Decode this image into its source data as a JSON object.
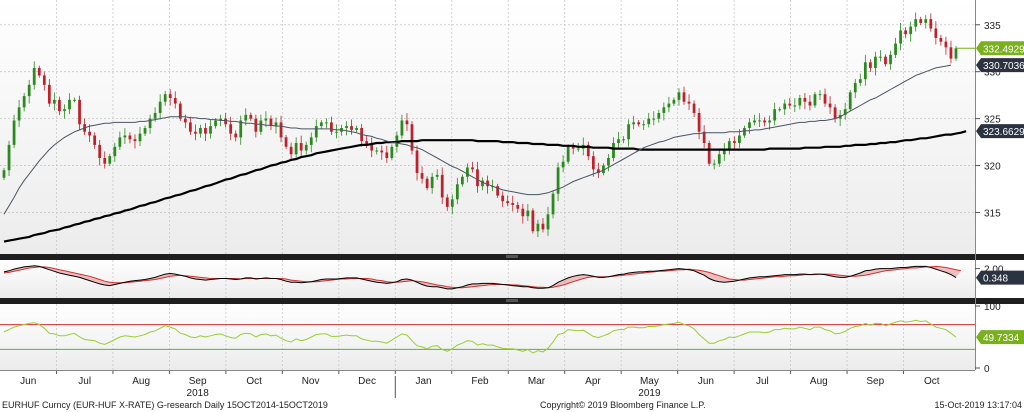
{
  "chart_data": {
    "type": "candlestick",
    "price_panel": {
      "ylim": [
        311,
        337
      ],
      "yticks": [
        "315",
        "320",
        "325",
        "330",
        "335"
      ],
      "last_price": "332.4929",
      "ma_short_last": "330.7036",
      "ma_long_last": "323.6629",
      "colors": {
        "up": "#2a8a1e",
        "down": "#c0202a",
        "ma_short": "#4a5460",
        "ma_long": "#000000",
        "badge_last": "#7ab01e",
        "badge_ma": "#2b3340"
      },
      "close": [
        319.5,
        322.2,
        324.8,
        326.2,
        327.4,
        328.6,
        330.4,
        329.6,
        328.6,
        326.6,
        327.0,
        325.8,
        326.0,
        327.0,
        327.0,
        324.4,
        323.6,
        323.2,
        322.2,
        320.8,
        320.2,
        321.0,
        322.0,
        323.0,
        323.2,
        322.8,
        322.6,
        323.4,
        324.0,
        325.0,
        325.6,
        326.8,
        327.6,
        327.2,
        326.6,
        325.0,
        324.6,
        323.6,
        323.4,
        324.0,
        323.4,
        324.2,
        324.8,
        325.0,
        324.4,
        323.4,
        323.0,
        324.8,
        325.4,
        325.0,
        323.6,
        324.8,
        325.0,
        324.2,
        324.6,
        323.0,
        322.0,
        321.2,
        322.4,
        321.6,
        322.2,
        323.0,
        324.2,
        324.6,
        324.6,
        323.6,
        323.6,
        324.0,
        324.2,
        323.8,
        324.0,
        322.6,
        322.2,
        321.6,
        321.6,
        321.4,
        320.8,
        322.0,
        323.2,
        324.8,
        324.4,
        321.6,
        319.2,
        318.6,
        317.6,
        318.8,
        319.0,
        316.6,
        315.6,
        316.4,
        318.0,
        318.8,
        319.8,
        319.6,
        317.8,
        318.4,
        317.8,
        317.8,
        316.8,
        316.2,
        316.0,
        315.8,
        315.4,
        314.6,
        315.2,
        313.0,
        313.8,
        313.2,
        314.8,
        317.0,
        319.8,
        320.4,
        322.0,
        321.8,
        321.8,
        322.2,
        321.0,
        319.6,
        319.2,
        320.0,
        320.8,
        322.4,
        322.8,
        322.8,
        324.4,
        324.6,
        324.4,
        324.4,
        325.0,
        325.0,
        325.6,
        326.2,
        326.6,
        327.0,
        327.8,
        326.8,
        326.6,
        325.6,
        323.6,
        322.4,
        320.2,
        320.2,
        321.2,
        321.6,
        322.6,
        322.4,
        323.2,
        324.0,
        324.6,
        324.8,
        324.8,
        324.6,
        324.8,
        326.0,
        326.0,
        326.6,
        326.4,
        326.4,
        327.2,
        326.8,
        326.4,
        327.6,
        327.6,
        326.6,
        326.2,
        325.0,
        325.4,
        326.0,
        327.8,
        328.8,
        329.2,
        331.0,
        330.4,
        331.6,
        331.6,
        330.8,
        331.8,
        333.0,
        334.4,
        334.0,
        334.8,
        335.6,
        335.2,
        335.6,
        334.6,
        333.6,
        333.2,
        332.6,
        331.4,
        332.4929
      ],
      "ma_short": [
        314.8,
        315.7,
        316.6,
        317.6,
        318.4,
        319.1,
        319.8,
        320.5,
        321.1,
        321.7,
        322.2,
        322.6,
        323.0,
        323.3,
        323.6,
        323.8,
        324.0,
        324.2,
        324.3,
        324.4,
        324.5,
        324.5,
        324.6,
        324.6,
        324.6,
        324.6,
        324.6,
        324.7,
        324.7,
        324.8,
        324.9,
        325.0,
        325.1,
        325.2,
        325.2,
        325.2,
        325.2,
        325.1,
        325.1,
        325.0,
        325.0,
        324.9,
        324.9,
        324.8,
        324.8,
        324.7,
        324.7,
        324.6,
        324.5,
        324.5,
        324.4,
        324.4,
        324.3,
        324.3,
        324.2,
        324.2,
        324.1,
        324.0,
        324.0,
        323.9,
        323.9,
        323.9,
        323.9,
        323.9,
        323.9,
        323.9,
        323.8,
        323.8,
        323.7,
        323.6,
        323.5,
        323.3,
        323.2,
        323.1,
        322.9,
        322.8,
        322.6,
        322.5,
        322.4,
        322.3,
        322.2,
        322.0,
        321.9,
        321.7,
        321.4,
        321.1,
        320.8,
        320.5,
        320.2,
        319.9,
        319.7,
        319.4,
        319.1,
        318.8,
        318.5,
        318.2,
        318.0,
        317.8,
        317.6,
        317.4,
        317.3,
        317.2,
        317.1,
        317.0,
        316.9,
        316.9,
        316.9,
        317.0,
        317.1,
        317.3,
        317.5,
        317.7,
        318.0,
        318.3,
        318.5,
        318.7,
        318.9,
        319.1,
        319.3,
        319.5,
        319.8,
        320.1,
        320.4,
        320.7,
        321.0,
        321.3,
        321.6,
        321.9,
        322.1,
        322.3,
        322.5,
        322.6,
        322.8,
        323.0,
        323.1,
        323.2,
        323.3,
        323.4,
        323.4,
        323.5,
        323.5,
        323.5,
        323.5,
        323.5,
        323.6,
        323.6,
        323.6,
        323.7,
        323.7,
        323.8,
        323.8,
        323.9,
        324.0,
        324.1,
        324.2,
        324.3,
        324.4,
        324.5,
        324.6,
        324.6,
        324.7,
        324.7,
        324.8,
        324.8,
        324.9,
        325.0,
        325.2,
        325.5,
        325.8,
        326.1,
        326.4,
        326.7,
        327.0,
        327.2,
        327.5,
        327.8,
        328.1,
        328.4,
        328.7,
        329.0,
        329.3,
        329.6,
        329.8,
        330.0,
        330.2,
        330.4,
        330.5,
        330.6,
        330.7036
      ],
      "ma_long": [
        311.9,
        312.0,
        312.1,
        312.2,
        312.3,
        312.4,
        312.6,
        312.7,
        312.8,
        313.0,
        313.1,
        313.2,
        313.4,
        313.5,
        313.7,
        313.8,
        314.0,
        314.1,
        314.3,
        314.4,
        314.6,
        314.7,
        314.9,
        315.0,
        315.2,
        315.3,
        315.5,
        315.7,
        315.8,
        316.0,
        316.1,
        316.3,
        316.5,
        316.6,
        316.8,
        316.9,
        317.1,
        317.3,
        317.4,
        317.6,
        317.8,
        317.9,
        318.1,
        318.3,
        318.5,
        318.6,
        318.8,
        319.0,
        319.1,
        319.3,
        319.5,
        319.6,
        319.8,
        320.0,
        320.1,
        320.3,
        320.4,
        320.6,
        320.7,
        320.9,
        321.0,
        321.1,
        321.3,
        321.4,
        321.5,
        321.6,
        321.7,
        321.8,
        321.9,
        322.0,
        322.1,
        322.2,
        322.2,
        322.3,
        322.4,
        322.4,
        322.5,
        322.5,
        322.5,
        322.6,
        322.6,
        322.6,
        322.6,
        322.7,
        322.7,
        322.7,
        322.7,
        322.7,
        322.7,
        322.7,
        322.7,
        322.7,
        322.7,
        322.7,
        322.6,
        322.6,
        322.6,
        322.6,
        322.6,
        322.5,
        322.5,
        322.5,
        322.4,
        322.4,
        322.4,
        322.3,
        322.3,
        322.3,
        322.2,
        322.2,
        322.2,
        322.1,
        322.1,
        322.1,
        322.0,
        322.0,
        322.0,
        321.9,
        321.9,
        321.9,
        321.9,
        321.8,
        321.8,
        321.8,
        321.8,
        321.8,
        321.7,
        321.7,
        321.7,
        321.7,
        321.7,
        321.7,
        321.7,
        321.7,
        321.7,
        321.7,
        321.7,
        321.7,
        321.7,
        321.7,
        321.7,
        321.7,
        321.7,
        321.7,
        321.7,
        321.7,
        321.7,
        321.7,
        321.7,
        321.7,
        321.7,
        321.7,
        321.8,
        321.8,
        321.8,
        321.8,
        321.8,
        321.8,
        321.8,
        321.9,
        321.9,
        321.9,
        321.9,
        322.0,
        322.0,
        322.0,
        322.0,
        322.1,
        322.1,
        322.2,
        322.2,
        322.2,
        322.3,
        322.3,
        322.4,
        322.4,
        322.5,
        322.5,
        322.6,
        322.7,
        322.7,
        322.8,
        322.9,
        322.9,
        323.0,
        323.1,
        323.2,
        323.3,
        323.3,
        323.4,
        323.5,
        323.6629
      ]
    },
    "macd_panel": {
      "yticks": [
        "2.00"
      ],
      "last_value": "0.348",
      "colors": {
        "macd": "#000000",
        "signal": "#d03030",
        "fill": "#e89090",
        "badge": "#2b3340"
      },
      "macd": [
        1.4,
        1.6,
        1.9,
        2.1,
        2.3,
        2.4,
        2.5,
        2.4,
        2.1,
        1.8,
        1.5,
        1.2,
        1.0,
        0.8,
        0.6,
        0.4,
        0.1,
        -0.2,
        -0.5,
        -0.8,
        -1.0,
        -1.1,
        -0.9,
        -0.7,
        -0.5,
        -0.3,
        -0.2,
        -0.1,
        0.0,
        0.2,
        0.4,
        0.7,
        1.0,
        1.1,
        1.0,
        0.8,
        0.6,
        0.3,
        0.1,
        0.0,
        -0.1,
        0.0,
        0.1,
        0.2,
        0.2,
        0.1,
        0.0,
        0.1,
        0.3,
        0.3,
        0.1,
        0.2,
        0.3,
        0.2,
        0.2,
        0.0,
        -0.3,
        -0.5,
        -0.5,
        -0.6,
        -0.5,
        -0.4,
        -0.2,
        0.0,
        0.1,
        0.1,
        0.1,
        0.2,
        0.3,
        0.3,
        0.3,
        0.1,
        -0.1,
        -0.3,
        -0.5,
        -0.6,
        -0.7,
        -0.6,
        -0.4,
        0.0,
        0.1,
        -0.1,
        -0.5,
        -0.9,
        -1.2,
        -1.3,
        -1.3,
        -1.5,
        -1.7,
        -1.7,
        -1.5,
        -1.3,
        -1.0,
        -0.8,
        -0.8,
        -0.7,
        -0.7,
        -0.7,
        -0.8,
        -0.9,
        -1.0,
        -1.1,
        -1.2,
        -1.3,
        -1.3,
        -1.5,
        -1.6,
        -1.6,
        -1.5,
        -1.1,
        -0.5,
        -0.1,
        0.3,
        0.6,
        0.8,
        0.9,
        0.8,
        0.6,
        0.4,
        0.4,
        0.5,
        0.7,
        0.9,
        1.0,
        1.2,
        1.3,
        1.4,
        1.4,
        1.5,
        1.5,
        1.6,
        1.7,
        1.8,
        1.9,
        2.0,
        1.9,
        1.8,
        1.6,
        1.2,
        0.8,
        0.2,
        -0.2,
        -0.4,
        -0.5,
        -0.4,
        -0.3,
        -0.1,
        0.1,
        0.3,
        0.4,
        0.5,
        0.5,
        0.6,
        0.7,
        0.8,
        0.9,
        0.9,
        0.9,
        1.0,
        1.0,
        0.9,
        1.0,
        1.0,
        0.9,
        0.7,
        0.5,
        0.4,
        0.4,
        0.6,
        0.9,
        1.2,
        1.6,
        1.7,
        1.9,
        2.0,
        2.0,
        2.0,
        2.1,
        2.2,
        2.2,
        2.3,
        2.4,
        2.4,
        2.4,
        2.2,
        1.9,
        1.6,
        1.3,
        0.9,
        0.348
      ],
      "signal": [
        1.2,
        1.3,
        1.5,
        1.7,
        1.9,
        2.1,
        2.2,
        2.3,
        2.3,
        2.2,
        2.0,
        1.8,
        1.6,
        1.4,
        1.2,
        1.0,
        0.8,
        0.6,
        0.3,
        0.0,
        -0.3,
        -0.5,
        -0.6,
        -0.6,
        -0.6,
        -0.5,
        -0.4,
        -0.3,
        -0.2,
        -0.1,
        0.0,
        0.2,
        0.4,
        0.6,
        0.7,
        0.8,
        0.7,
        0.6,
        0.5,
        0.4,
        0.3,
        0.2,
        0.2,
        0.2,
        0.2,
        0.2,
        0.2,
        0.1,
        0.2,
        0.2,
        0.2,
        0.2,
        0.2,
        0.2,
        0.2,
        0.2,
        0.1,
        -0.1,
        -0.2,
        -0.3,
        -0.4,
        -0.4,
        -0.4,
        -0.3,
        -0.2,
        -0.1,
        0.0,
        0.1,
        0.1,
        0.2,
        0.2,
        0.2,
        0.2,
        0.1,
        -0.1,
        -0.2,
        -0.4,
        -0.5,
        -0.5,
        -0.4,
        -0.3,
        -0.2,
        -0.3,
        -0.4,
        -0.6,
        -0.8,
        -1.0,
        -1.1,
        -1.3,
        -1.4,
        -1.5,
        -1.5,
        -1.4,
        -1.3,
        -1.2,
        -1.1,
        -1.0,
        -0.9,
        -0.9,
        -0.9,
        -0.9,
        -1.0,
        -1.0,
        -1.1,
        -1.2,
        -1.3,
        -1.4,
        -1.4,
        -1.5,
        -1.4,
        -1.2,
        -1.0,
        -0.7,
        -0.4,
        -0.1,
        0.2,
        0.4,
        0.5,
        0.5,
        0.5,
        0.5,
        0.6,
        0.7,
        0.8,
        0.9,
        1.0,
        1.1,
        1.2,
        1.3,
        1.4,
        1.5,
        1.5,
        1.6,
        1.7,
        1.8,
        1.8,
        1.9,
        1.8,
        1.7,
        1.5,
        1.3,
        1.0,
        0.7,
        0.4,
        0.1,
        0.0,
        -0.1,
        -0.1,
        0.0,
        0.1,
        0.2,
        0.3,
        0.4,
        0.5,
        0.5,
        0.6,
        0.7,
        0.7,
        0.8,
        0.9,
        0.9,
        0.9,
        1.0,
        1.0,
        1.0,
        0.9,
        0.8,
        0.7,
        0.6,
        0.6,
        0.7,
        0.8,
        1.0,
        1.2,
        1.4,
        1.6,
        1.7,
        1.8,
        1.9,
        2.0,
        2.1,
        2.1,
        2.2,
        2.3,
        2.3,
        2.4,
        2.3,
        2.2,
        2.0,
        1.8,
        1.6
      ]
    },
    "rsi_panel": {
      "ylim": [
        0,
        100
      ],
      "yticks": [
        "0",
        "100"
      ],
      "overbought": 70,
      "oversold": 30,
      "last_value": "49.7334",
      "colors": {
        "line": "#9acd32",
        "overbought": "#d03030",
        "oversold": "#3cc03c",
        "badge": "#7ab01e"
      },
      "values": [
        58,
        62,
        66,
        68,
        70,
        72,
        73,
        70,
        64,
        56,
        55,
        52,
        52,
        54,
        56,
        50,
        46,
        45,
        44,
        40,
        38,
        42,
        46,
        50,
        52,
        51,
        50,
        52,
        54,
        58,
        60,
        64,
        68,
        66,
        63,
        56,
        54,
        50,
        49,
        52,
        50,
        52,
        54,
        55,
        52,
        49,
        48,
        54,
        56,
        55,
        50,
        54,
        55,
        52,
        53,
        48,
        44,
        42,
        47,
        44,
        46,
        50,
        54,
        55,
        55,
        51,
        51,
        52,
        53,
        52,
        52,
        47,
        45,
        43,
        43,
        42,
        40,
        45,
        50,
        55,
        53,
        44,
        36,
        34,
        31,
        35,
        36,
        30,
        27,
        31,
        37,
        40,
        44,
        43,
        37,
        39,
        37,
        37,
        34,
        32,
        31,
        31,
        29,
        27,
        30,
        24,
        28,
        26,
        32,
        42,
        54,
        56,
        62,
        61,
        60,
        61,
        56,
        51,
        49,
        52,
        55,
        60,
        62,
        62,
        66,
        66,
        65,
        65,
        67,
        67,
        68,
        70,
        71,
        72,
        74,
        70,
        68,
        63,
        54,
        47,
        40,
        40,
        44,
        46,
        50,
        49,
        52,
        55,
        58,
        58,
        58,
        57,
        58,
        62,
        62,
        64,
        63,
        63,
        66,
        64,
        62,
        66,
        66,
        62,
        60,
        55,
        56,
        59,
        64,
        67,
        68,
        72,
        69,
        72,
        72,
        68,
        71,
        74,
        76,
        74,
        75,
        77,
        75,
        76,
        71,
        66,
        64,
        62,
        56,
        49.7334
      ]
    },
    "x_axis": {
      "months": [
        "Jun",
        "Jul",
        "Aug",
        "Sep",
        "Oct",
        "Nov",
        "Dec",
        "Jan",
        "Feb",
        "Mar",
        "Apr",
        "May",
        "Jun",
        "Jul",
        "Aug",
        "Sep",
        "Oct"
      ],
      "years": [
        "2018",
        "2019"
      ]
    }
  },
  "footer": {
    "security": "EURHUF Curncy (EUR-HUF X-RATE) G-research  Daily 15OCT2014-15OCT2019",
    "copyright": "Copyright© 2019 Bloomberg Finance L.P.",
    "timestamp": "15-Oct-2019 13:17:04"
  }
}
